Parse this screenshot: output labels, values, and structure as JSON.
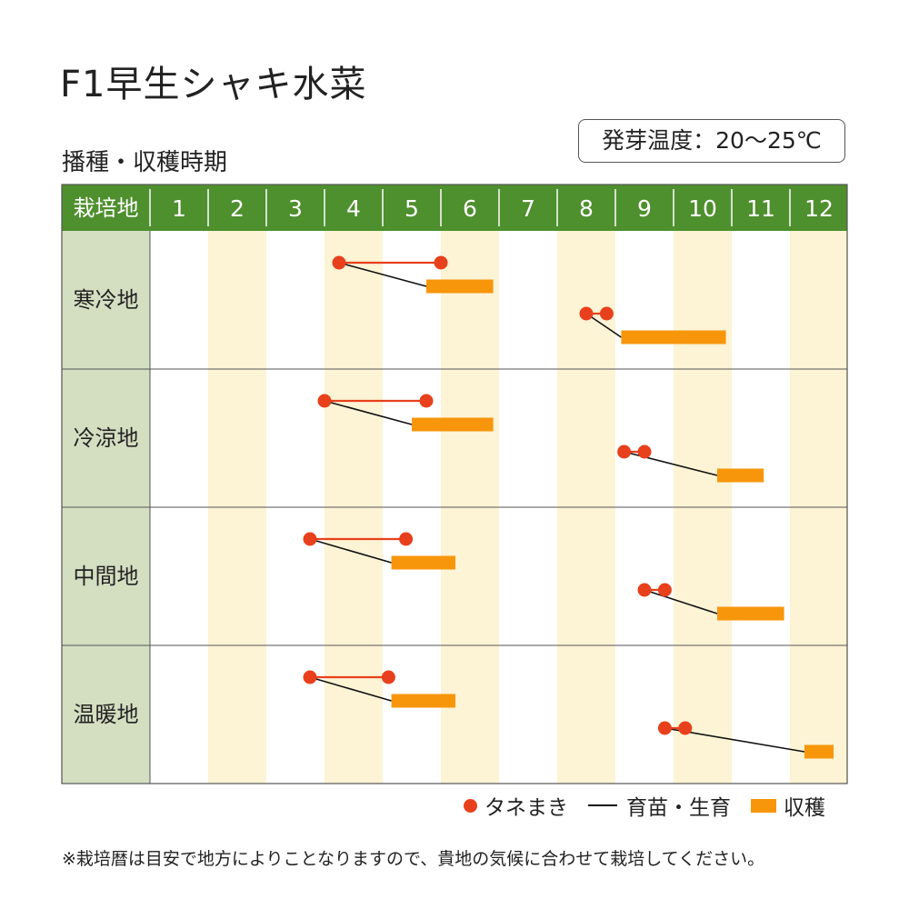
{
  "page": {
    "title": "F1早生シャキ水菜",
    "subtitle": "播種・収穫時期",
    "temperature": "発芽温度：20～25℃",
    "note": "※栽培暦は目安で地方によりことなりますので、貴地の気候に合わせて栽培してください。"
  },
  "legend": {
    "sowing": "タネまき",
    "growing": "育苗・生育",
    "harvest": "収穫"
  },
  "colors": {
    "header_bg": "#4e8f2e",
    "header_text": "#ffffff",
    "region_bg": "#d4dfc2",
    "stripe": "#fdf3d5",
    "sowing": "#e8401c",
    "growing": "#111111",
    "harvest": "#f7960b",
    "grid": "#555555"
  },
  "chart_data": {
    "type": "table",
    "header_label": "栽培地",
    "months": [
      "1",
      "2",
      "3",
      "4",
      "5",
      "6",
      "7",
      "8",
      "9",
      "10",
      "11",
      "12"
    ],
    "regions": [
      {
        "name": "寒冷地",
        "schedules": [
          {
            "sowing": [
              4.25,
              6.0
            ],
            "growing_to": 5.75,
            "harvest": [
              5.75,
              6.9
            ]
          },
          {
            "sowing": [
              8.5,
              8.85
            ],
            "growing_to": 9.1,
            "harvest": [
              9.1,
              10.9
            ]
          }
        ]
      },
      {
        "name": "冷涼地",
        "schedules": [
          {
            "sowing": [
              4.0,
              5.75
            ],
            "growing_to": 5.5,
            "harvest": [
              5.5,
              6.9
            ]
          },
          {
            "sowing": [
              9.15,
              9.5
            ],
            "growing_to": 10.75,
            "harvest": [
              10.75,
              11.55
            ]
          }
        ]
      },
      {
        "name": "中間地",
        "schedules": [
          {
            "sowing": [
              3.75,
              5.4
            ],
            "growing_to": 5.15,
            "harvest": [
              5.15,
              6.25
            ]
          },
          {
            "sowing": [
              9.5,
              9.85
            ],
            "growing_to": 10.75,
            "harvest": [
              10.75,
              11.9
            ]
          }
        ]
      },
      {
        "name": "温暖地",
        "schedules": [
          {
            "sowing": [
              3.75,
              5.1
            ],
            "growing_to": 5.15,
            "harvest": [
              5.15,
              6.25
            ]
          },
          {
            "sowing": [
              9.85,
              10.2
            ],
            "growing_to": 12.25,
            "harvest": [
              12.25,
              12.75
            ]
          }
        ]
      }
    ]
  }
}
